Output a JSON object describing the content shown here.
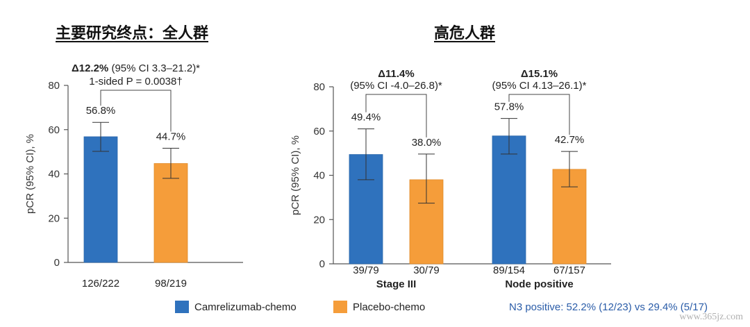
{
  "titles": {
    "left": "主要研究终点：全人群",
    "right": "高危人群"
  },
  "colors": {
    "camrelizumab": "#2f72bd",
    "placebo": "#f59d3a",
    "axis": "#555555",
    "note": "#2a5ca8"
  },
  "legend": {
    "series_a": "Camrelizumab-chemo",
    "series_b": "Placebo-chemo"
  },
  "note": "N3 positive: 52.2% (12/23) vs 29.4% (5/17)",
  "watermark": "www.365jz.com",
  "chart_data": [
    {
      "type": "bar",
      "ylabel": "pCR (95% CI), %",
      "ylim": [
        0,
        80
      ],
      "yticks": [
        0,
        20,
        40,
        60,
        80
      ],
      "groups": [
        {
          "label": "",
          "categories": [
            "126/222",
            "98/219"
          ],
          "values": [
            56.8,
            44.7
          ],
          "value_labels": [
            "56.8%",
            "44.7%"
          ],
          "ci": [
            [
              50.2,
              63.3
            ],
            [
              38.0,
              51.6
            ]
          ],
          "series": [
            "Camrelizumab-chemo",
            "Placebo-chemo"
          ],
          "annotation": {
            "delta": "Δ12.2%",
            "ci_text": " (95% CI 3.3–21.2)*",
            "line2": "1-sided P = 0.0038†"
          }
        }
      ]
    },
    {
      "type": "bar",
      "ylabel": "pCR (95% CI), %",
      "ylim": [
        0,
        80
      ],
      "yticks": [
        0,
        20,
        40,
        60,
        80
      ],
      "groups": [
        {
          "label": "Stage III",
          "categories": [
            "39/79",
            "30/79"
          ],
          "values": [
            49.4,
            38.0
          ],
          "value_labels": [
            "49.4%",
            "38.0%"
          ],
          "ci": [
            [
              38.0,
              61.0
            ],
            [
              27.4,
              49.6
            ]
          ],
          "series": [
            "Camrelizumab-chemo",
            "Placebo-chemo"
          ],
          "annotation": {
            "delta": "Δ11.4%",
            "line2": "(95% CI -4.0–26.8)*"
          }
        },
        {
          "label": "Node positive",
          "categories": [
            "89/154",
            "67/157"
          ],
          "values": [
            57.8,
            42.7
          ],
          "value_labels": [
            "57.8%",
            "42.7%"
          ],
          "ci": [
            [
              49.6,
              65.7
            ],
            [
              34.8,
              50.8
            ]
          ],
          "series": [
            "Camrelizumab-chemo",
            "Placebo-chemo"
          ],
          "annotation": {
            "delta": "Δ15.1%",
            "line2": "(95% CI 4.13–26.1)*"
          }
        }
      ]
    }
  ]
}
